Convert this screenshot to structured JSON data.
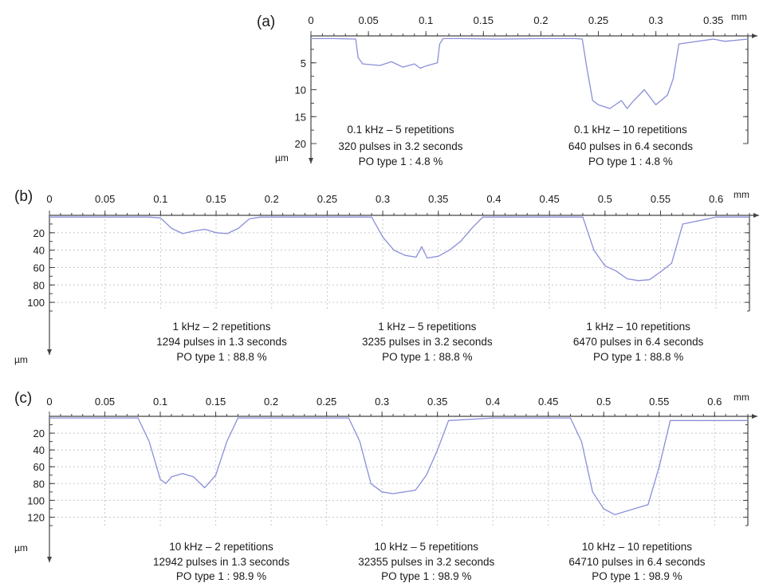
{
  "chart_data": [
    {
      "type": "line",
      "label": "(a)",
      "x_unit": "mm",
      "y_unit": "µm",
      "xlim": [
        0,
        0.38
      ],
      "ylim": [
        20,
        0
      ],
      "x_ticks": [
        0,
        0.05,
        0.1,
        0.15,
        0.2,
        0.25,
        0.3,
        0.35
      ],
      "x_tick_labels": [
        "0",
        "0.05",
        "0.1",
        "0.15",
        "0.2",
        "0.25",
        "0.3",
        "0.35"
      ],
      "y_ticks": [
        5,
        10,
        15,
        20
      ],
      "y_tick_labels": [
        "5",
        "10",
        "15",
        "20"
      ],
      "grid": false,
      "series": [
        {
          "x": [
            0,
            0.02,
            0.039,
            0.041,
            0.045,
            0.06,
            0.07,
            0.08,
            0.09,
            0.095,
            0.1,
            0.11,
            0.112,
            0.115,
            0.13,
            0.16,
            0.2,
            0.23,
            0.236,
            0.24,
            0.245,
            0.25,
            0.26,
            0.27,
            0.275,
            0.28,
            0.29,
            0.3,
            0.31,
            0.315,
            0.32,
            0.35,
            0.36,
            0.38
          ],
          "y": [
            0.5,
            0.5,
            0.6,
            4,
            5.2,
            5.5,
            4.8,
            5.8,
            5.2,
            6,
            5.6,
            5,
            1.5,
            0.5,
            0.5,
            0.6,
            0.5,
            0.5,
            0.6,
            6,
            12,
            12.8,
            13.5,
            12,
            13.5,
            12.2,
            10,
            12.8,
            11,
            8,
            1.5,
            0.6,
            1,
            0.6
          ]
        }
      ],
      "annotations": [
        {
          "x": 0.078,
          "lines": [
            "0.1 kHz – 5 repetitions",
            "320 pulses in 3.2 seconds",
            "PO type 1 : 4.8 %"
          ]
        },
        {
          "x": 0.278,
          "lines": [
            "0.1 kHz – 10 repetitions",
            "640 pulses in 6.4 seconds",
            "PO type 1 : 4.8 %"
          ]
        }
      ]
    },
    {
      "type": "line",
      "label": "(b)",
      "x_unit": "mm",
      "y_unit": "µm",
      "xlim": [
        0,
        0.63
      ],
      "ylim": [
        110,
        0
      ],
      "x_ticks": [
        0,
        0.05,
        0.1,
        0.15,
        0.2,
        0.25,
        0.3,
        0.35,
        0.4,
        0.45,
        0.5,
        0.55,
        0.6
      ],
      "x_tick_labels": [
        "0",
        "0.05",
        "0.1",
        "0.15",
        "0.2",
        "0.25",
        "0.3",
        "0.35",
        "0.4",
        "0.45",
        "0.5",
        "0.55",
        "0.6"
      ],
      "y_ticks": [
        20,
        40,
        60,
        80,
        100
      ],
      "y_tick_labels": [
        "20",
        "40",
        "60",
        "80",
        "100"
      ],
      "grid": true,
      "series": [
        {
          "x": [
            0,
            0.05,
            0.09,
            0.1,
            0.11,
            0.12,
            0.13,
            0.14,
            0.15,
            0.16,
            0.17,
            0.18,
            0.19,
            0.24,
            0.28,
            0.29,
            0.3,
            0.31,
            0.32,
            0.33,
            0.335,
            0.34,
            0.35,
            0.36,
            0.37,
            0.38,
            0.39,
            0.4,
            0.44,
            0.48,
            0.49,
            0.5,
            0.51,
            0.52,
            0.53,
            0.54,
            0.55,
            0.56,
            0.57,
            0.6,
            0.63
          ],
          "y": [
            2,
            2,
            2,
            3,
            15,
            21,
            18,
            16,
            20,
            21,
            15,
            4,
            2,
            2,
            2,
            2,
            25,
            40,
            46,
            48,
            36,
            49,
            47,
            40,
            30,
            15,
            2,
            2,
            2,
            2,
            40,
            58,
            64,
            73,
            75,
            74,
            65,
            55,
            10,
            2,
            2
          ]
        }
      ],
      "annotations": [
        {
          "x": 0.155,
          "lines": [
            "1 kHz – 2 repetitions",
            "1294 pulses in 1.3 seconds",
            "PO type 1 : 88.8 %"
          ]
        },
        {
          "x": 0.34,
          "lines": [
            "1 kHz – 5 repetitions",
            "3235 pulses in 3.2 seconds",
            "PO type 1 : 88.8 %"
          ]
        },
        {
          "x": 0.53,
          "lines": [
            "1 kHz – 10 repetitions",
            "6470 pulses in 6.4 seconds",
            "PO type 1 : 88.8 %"
          ]
        }
      ]
    },
    {
      "type": "line",
      "label": "(c)",
      "x_unit": "mm",
      "y_unit": "µm",
      "xlim": [
        0,
        0.63
      ],
      "ylim": [
        130,
        0
      ],
      "x_ticks": [
        0,
        0.05,
        0.1,
        0.15,
        0.2,
        0.25,
        0.3,
        0.35,
        0.4,
        0.45,
        0.5,
        0.55,
        0.6
      ],
      "x_tick_labels": [
        "0",
        "0.05",
        "0.1",
        "0.15",
        "0.2",
        "0.25",
        "0.3",
        "0.35",
        "0.4",
        "0.45",
        "0.5",
        "0.55",
        "0.6"
      ],
      "y_ticks": [
        20,
        40,
        60,
        80,
        100,
        120
      ],
      "y_tick_labels": [
        "20",
        "40",
        "60",
        "80",
        "100",
        "120"
      ],
      "grid": true,
      "series": [
        {
          "x": [
            0,
            0.05,
            0.08,
            0.09,
            0.1,
            0.105,
            0.11,
            0.12,
            0.13,
            0.14,
            0.15,
            0.16,
            0.17,
            0.2,
            0.25,
            0.27,
            0.28,
            0.29,
            0.3,
            0.31,
            0.32,
            0.33,
            0.34,
            0.35,
            0.36,
            0.4,
            0.44,
            0.47,
            0.48,
            0.49,
            0.5,
            0.51,
            0.54,
            0.55,
            0.56,
            0.6,
            0.63
          ],
          "y": [
            2,
            2,
            2,
            30,
            75,
            80,
            72,
            68,
            72,
            85,
            70,
            30,
            2,
            2,
            2,
            2,
            30,
            80,
            90,
            92,
            90,
            88,
            70,
            40,
            5,
            2,
            2,
            2,
            30,
            90,
            110,
            117,
            105,
            60,
            5,
            5,
            5
          ]
        }
      ],
      "annotations": [
        {
          "x": 0.155,
          "lines": [
            "10 kHz – 2 repetitions",
            "12942 pulses in 1.3 seconds",
            "PO type 1 : 98.9 %"
          ]
        },
        {
          "x": 0.34,
          "lines": [
            "10 kHz – 5 repetitions",
            "32355 pulses in 3.2 seconds",
            "PO type 1 : 98.9 %"
          ]
        },
        {
          "x": 0.53,
          "lines": [
            "10 kHz – 10 repetitions",
            "64710 pulses in 6.4 seconds",
            "PO type 1 : 98.9 %"
          ]
        }
      ]
    }
  ]
}
